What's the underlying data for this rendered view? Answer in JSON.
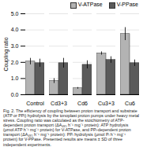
{
  "chart_data": {
    "type": "bar",
    "y_label": "Coupling ratio",
    "caption": "Fig. 2. The efficiency of coupling between proton transport and substrate (ATP or PPi) hydrolysis by the tonoplast proton pumps under heavy metal stress. Coupling ratio was calculated as the stoichiometry of ATP-dependent proton transport (ΔA₄₉₅ h⁻¹ mg⁻¹ protein): ATP hydrolysis (μmol ATP h⁻¹ mg⁻¹ protein) for V-ATPase, and PPᵢ-dependent proton transport (ΔA₄₉₅ h⁻¹ mg⁻¹ protein): PPᵢ hydrolysis (μmol Pᵢ h⁻¹ mg⁻¹ protein) for V-PPase. Presented results are means ± SD of three independent experiments.",
    "categories": [
      "Control",
      "Cd3+3",
      "Cd6",
      "Cu3+3",
      "Cu6"
    ],
    "series": [
      {
        "name": "V-ATPase",
        "color": "#b3b3b3",
        "values": [
          2.05,
          0.85,
          0.4,
          2.55,
          3.75
        ],
        "errors": [
          0.2,
          0.15,
          0.05,
          0.1,
          0.4
        ]
      },
      {
        "name": "V-PPase",
        "color": "#5a5a5a",
        "values": [
          1.95,
          1.95,
          1.85,
          2.15,
          1.95
        ],
        "errors": [
          0.25,
          0.3,
          0.25,
          0.2,
          0.2
        ]
      }
    ],
    "ylim": [
      0,
      5
    ],
    "yticks": [
      0,
      1,
      2,
      3,
      4,
      5
    ],
    "grid": true,
    "legend": "top-right"
  }
}
